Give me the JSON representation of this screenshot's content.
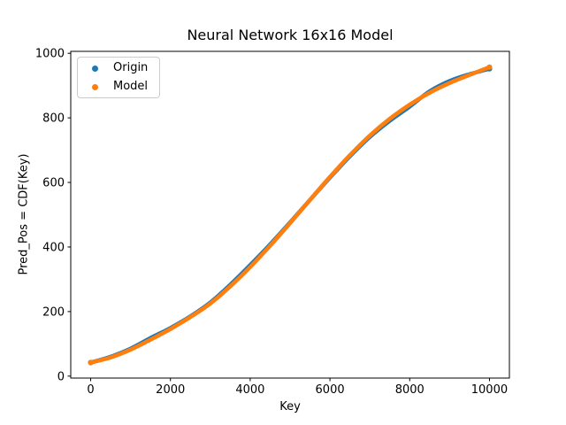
{
  "figure": {
    "title": "Neural Network 16x16 Model",
    "xlabel": "Key",
    "ylabel": "Pred_Pos = CDF(Key)"
  },
  "legend": {
    "position": "upper left",
    "items": [
      {
        "label": "Origin",
        "color": "#1f77b4",
        "marker": "dot-icon"
      },
      {
        "label": "Model",
        "color": "#ff7f0e",
        "marker": "dot-icon"
      }
    ]
  },
  "axes": {
    "x_tick_labels": [
      "0",
      "2000",
      "4000",
      "6000",
      "8000",
      "10000"
    ],
    "y_tick_labels": [
      "0",
      "200",
      "400",
      "600",
      "800",
      "1000"
    ],
    "x_ticks": [
      0,
      2000,
      4000,
      6000,
      8000,
      10000
    ],
    "y_ticks": [
      0,
      200,
      400,
      600,
      800,
      1000
    ],
    "spine_color": "#000000",
    "background": "#ffffff",
    "grid": false
  },
  "chart_data": {
    "type": "scatter",
    "title": "Neural Network 16x16 Model",
    "xlabel": "Key",
    "ylabel": "Pred_Pos = CDF(Key)",
    "xlim": [
      -500,
      10500
    ],
    "ylim": [
      -6,
      1006
    ],
    "grid": false,
    "legend_position": "upper left",
    "x": [
      0,
      500,
      1000,
      1500,
      2000,
      2500,
      3000,
      3500,
      4000,
      4500,
      5000,
      5500,
      6000,
      6500,
      7000,
      7500,
      8000,
      8500,
      9000,
      9500,
      10000
    ],
    "series": [
      {
        "name": "Origin",
        "color": "#1f77b4",
        "values": [
          42,
          60,
          85,
          118,
          149,
          185,
          228,
          283,
          344,
          408,
          476,
          546,
          615,
          681,
          741,
          791,
          835,
          882,
          914,
          935,
          952
        ]
      },
      {
        "name": "Model",
        "color": "#ff7f0e",
        "values": [
          42,
          58,
          82,
          113,
          146,
          183,
          225,
          278,
          338,
          404,
          474,
          546,
          617,
          684,
          745,
          797,
          841,
          878,
          908,
          933,
          957
        ]
      }
    ]
  }
}
